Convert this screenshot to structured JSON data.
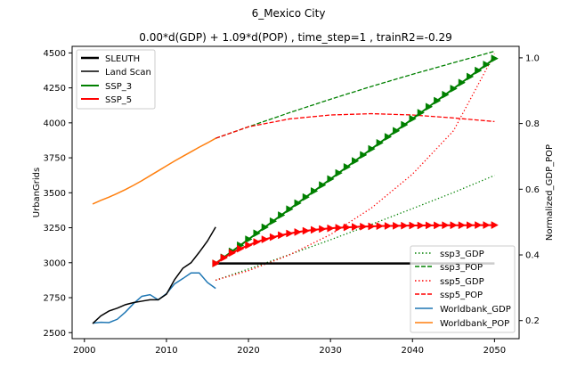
{
  "chart_data": {
    "type": "line",
    "suptitle": "6_Mexico City",
    "title": "0.00*d(GDP) + 1.09*d(POP) , time_step=1 , trainR2=-0.29",
    "xlim": [
      1998.5,
      2053
    ],
    "x_ticks": [
      2000,
      2010,
      2020,
      2030,
      2040,
      2050
    ],
    "left_axis": {
      "ylabel": "UrbanGrids",
      "ylim": [
        2457,
        4547
      ],
      "ticks": [
        2500,
        2750,
        3000,
        3250,
        3500,
        3750,
        4000,
        4250,
        4500
      ]
    },
    "right_axis": {
      "ylabel": "Normalized_GDP_POP",
      "ylim": [
        0.145,
        1.035
      ],
      "ticks": [
        0.2,
        0.4,
        0.6,
        0.8,
        1.0
      ],
      "tick_labels": [
        "0.2",
        "0.4",
        "0.6",
        "0.8",
        "1.0"
      ]
    },
    "legend_left": [
      "SLEUTH",
      "Land Scan",
      "SSP_3",
      "SSP_5"
    ],
    "legend_right": [
      "ssp3_GDP",
      "ssp3_POP",
      "ssp5_GDP",
      "ssp5_POP",
      "Worldbank_GDP",
      "Worldbank_POP"
    ],
    "colors": {
      "sleuth": "#000000",
      "landscan": "#000000",
      "ssp3": "#008000",
      "ssp5": "#ff0000",
      "worldbank_gdp": "#1f77b4",
      "worldbank_pop": "#ff7f0e"
    },
    "left_series": {
      "sleuth": {
        "x": [
          2016,
          2050
        ],
        "y": [
          2995,
          2995
        ]
      },
      "landscan": {
        "x": [
          2001,
          2002,
          2003,
          2004,
          2005,
          2006,
          2007,
          2008,
          2009,
          2010,
          2011,
          2012,
          2013,
          2014,
          2015,
          2016
        ],
        "y": [
          2565,
          2620,
          2655,
          2675,
          2700,
          2715,
          2725,
          2735,
          2735,
          2775,
          2880,
          2960,
          3000,
          3075,
          3155,
          3255
        ]
      },
      "ssp3": {
        "x_start": 2016,
        "x_end": 2050,
        "y_start": 2995,
        "y_end": 4460
      },
      "ssp5": {
        "x": [
          2016,
          2017,
          2018,
          2019,
          2020,
          2021,
          2022,
          2023,
          2024,
          2025,
          2026,
          2027,
          2028,
          2029,
          2030,
          2031,
          2032,
          2033,
          2034,
          2035,
          2036,
          2037,
          2038,
          2039,
          2040,
          2041,
          2042,
          2043,
          2044,
          2045,
          2046,
          2047,
          2048,
          2049,
          2050
        ],
        "y": [
          2995,
          3035,
          3070,
          3100,
          3125,
          3148,
          3167,
          3183,
          3197,
          3209,
          3219,
          3228,
          3235,
          3241,
          3246,
          3250,
          3253,
          3256,
          3258,
          3260,
          3262,
          3263,
          3264,
          3265,
          3266,
          3266,
          3267,
          3267,
          3268,
          3268,
          3268,
          3268,
          3269,
          3269,
          3269
        ]
      }
    },
    "right_series": {
      "worldbank_pop": {
        "x": [
          2001,
          2002,
          2003,
          2004,
          2005,
          2006,
          2007,
          2008,
          2009,
          2010,
          2011,
          2012,
          2013,
          2014,
          2015,
          2016
        ],
        "y": [
          0.555,
          0.566,
          0.576,
          0.587,
          0.599,
          0.612,
          0.626,
          0.641,
          0.656,
          0.671,
          0.686,
          0.7,
          0.714,
          0.728,
          0.741,
          0.755
        ]
      },
      "worldbank_gdp": {
        "x": [
          2001,
          2002,
          2003,
          2004,
          2005,
          2006,
          2007,
          2008,
          2009,
          2010,
          2011,
          2012,
          2013,
          2014,
          2015,
          2016
        ],
        "y": [
          0.192,
          0.195,
          0.194,
          0.204,
          0.226,
          0.252,
          0.274,
          0.279,
          0.263,
          0.282,
          0.312,
          0.328,
          0.345,
          0.345,
          0.316,
          0.298
        ]
      },
      "ssp3_pop": {
        "x": [
          2016,
          2020,
          2025,
          2030,
          2035,
          2040,
          2045,
          2050
        ],
        "y": [
          0.755,
          0.79,
          0.833,
          0.874,
          0.913,
          0.95,
          0.985,
          1.02
        ]
      },
      "ssp5_pop": {
        "x": [
          2016,
          2020,
          2025,
          2030,
          2035,
          2040,
          2045,
          2050
        ],
        "y": [
          0.755,
          0.79,
          0.814,
          0.826,
          0.83,
          0.826,
          0.817,
          0.806
        ]
      },
      "ssp3_gdp": {
        "x": [
          2016,
          2020,
          2025,
          2030,
          2035,
          2040,
          2045,
          2050
        ],
        "y": [
          0.323,
          0.357,
          0.401,
          0.446,
          0.493,
          0.541,
          0.59,
          0.642
        ]
      },
      "ssp5_gdp": {
        "x": [
          2016,
          2020,
          2025,
          2030,
          2035,
          2040,
          2045,
          2050
        ],
        "y": [
          0.323,
          0.352,
          0.4,
          0.462,
          0.543,
          0.646,
          0.778,
          1.012
        ]
      }
    }
  }
}
